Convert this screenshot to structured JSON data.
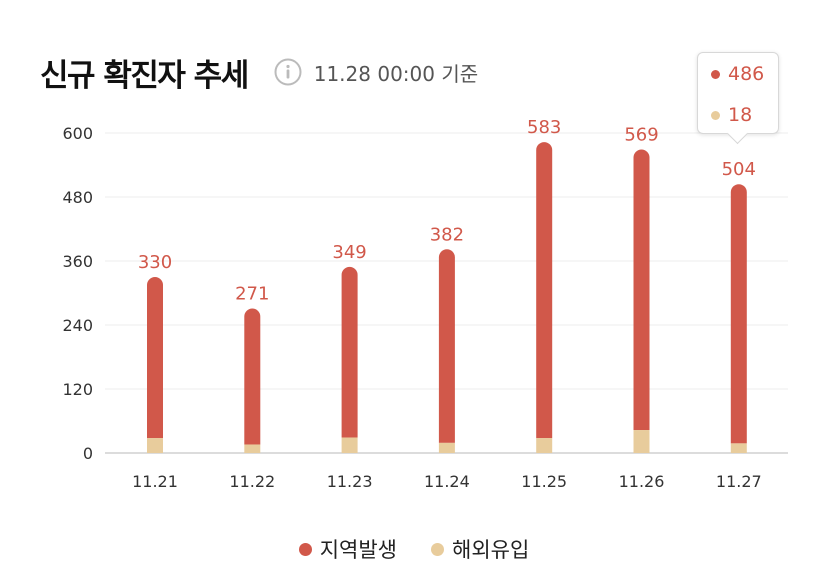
{
  "header": {
    "title": "신규 확진자 추세",
    "info_icon": "info-icon",
    "basis": "11.28 00:00 기준"
  },
  "colors": {
    "domestic": "#d1584a",
    "overseas": "#e8cc9c",
    "grid": "#ececec",
    "axis": "#c8c8c8",
    "tick_text": "#333333",
    "value_label": "#d1584a"
  },
  "tooltip": {
    "domestic_value": "486",
    "overseas_value": "18"
  },
  "legend": {
    "domestic_label": "지역발생",
    "overseas_label": "해외유입"
  },
  "chart_data": {
    "type": "bar",
    "stacked": true,
    "title": "신규 확진자 추세",
    "categories": [
      "11.21",
      "11.22",
      "11.23",
      "11.24",
      "11.25",
      "11.26",
      "11.27"
    ],
    "series": [
      {
        "name": "지역발생",
        "values": [
          302,
          255,
          320,
          363,
          555,
          526,
          486
        ]
      },
      {
        "name": "해외유입",
        "values": [
          28,
          16,
          29,
          19,
          28,
          43,
          18
        ]
      }
    ],
    "totals": [
      330,
      271,
      349,
      382,
      583,
      569,
      504
    ],
    "ylim": [
      0,
      600
    ],
    "yticks": [
      0,
      120,
      240,
      360,
      480,
      600
    ],
    "grid": true,
    "legend_position": "bottom"
  }
}
